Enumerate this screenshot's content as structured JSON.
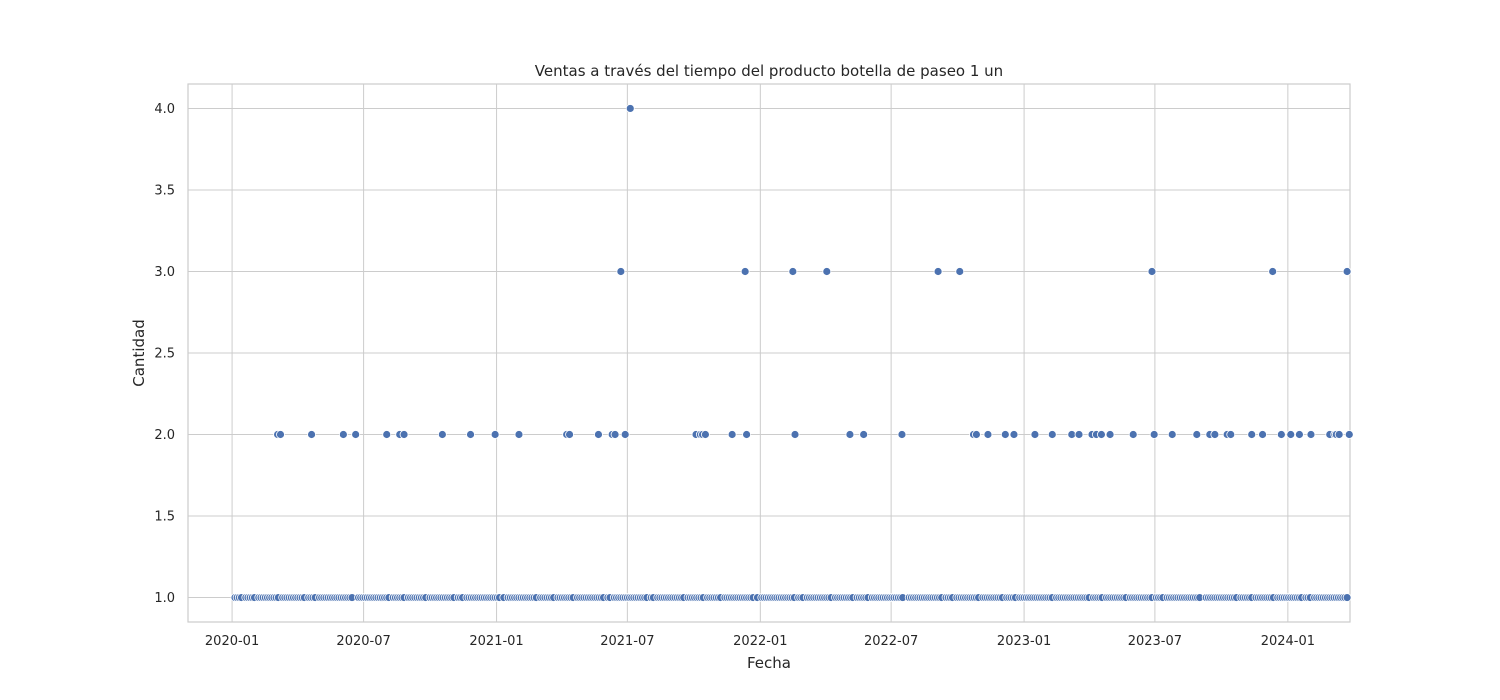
{
  "chart_data": {
    "type": "scatter",
    "title": "Ventas a través del tiempo del producto botella de paseo 1 un",
    "xlabel": "Fecha",
    "ylabel": "Cantidad",
    "x_axis_type": "date",
    "xlim": [
      "2019-11-01",
      "2024-03-27"
    ],
    "ylim": [
      0.85,
      4.15
    ],
    "x_ticks": [
      {
        "date": "2020-01-01",
        "label": "2020-01"
      },
      {
        "date": "2020-07-01",
        "label": "2020-07"
      },
      {
        "date": "2021-01-01",
        "label": "2021-01"
      },
      {
        "date": "2021-07-01",
        "label": "2021-07"
      },
      {
        "date": "2022-01-01",
        "label": "2022-01"
      },
      {
        "date": "2022-07-01",
        "label": "2022-07"
      },
      {
        "date": "2023-01-01",
        "label": "2023-01"
      },
      {
        "date": "2023-07-01",
        "label": "2023-07"
      },
      {
        "date": "2024-01-01",
        "label": "2024-01"
      }
    ],
    "y_ticks": [
      {
        "value": 1.0,
        "label": "1.0"
      },
      {
        "value": 1.5,
        "label": "1.5"
      },
      {
        "value": 2.0,
        "label": "2.0"
      },
      {
        "value": 2.5,
        "label": "2.5"
      },
      {
        "value": 3.0,
        "label": "3.0"
      },
      {
        "value": 3.5,
        "label": "3.5"
      },
      {
        "value": 4.0,
        "label": "4.0"
      }
    ],
    "grid": true,
    "marker_color": "#4c72b0",
    "series": [
      {
        "points": [
          [
            "2020-03-04",
            2
          ],
          [
            "2020-03-08",
            2
          ],
          [
            "2020-04-20",
            2
          ],
          [
            "2020-06-03",
            2
          ],
          [
            "2020-06-20",
            2
          ],
          [
            "2020-08-02",
            2
          ],
          [
            "2020-08-20",
            2
          ],
          [
            "2020-08-26",
            2
          ],
          [
            "2020-10-18",
            2
          ],
          [
            "2020-11-26",
            2
          ],
          [
            "2020-12-30",
            2
          ],
          [
            "2021-02-01",
            2
          ],
          [
            "2021-04-08",
            2
          ],
          [
            "2021-04-12",
            2
          ],
          [
            "2021-05-22",
            2
          ],
          [
            "2021-06-10",
            2
          ],
          [
            "2021-06-14",
            2
          ],
          [
            "2021-06-28",
            2
          ],
          [
            "2021-10-04",
            2
          ],
          [
            "2021-10-10",
            2
          ],
          [
            "2021-10-13",
            2
          ],
          [
            "2021-10-17",
            2
          ],
          [
            "2021-11-23",
            2
          ],
          [
            "2021-12-13",
            2
          ],
          [
            "2022-02-18",
            2
          ],
          [
            "2022-05-05",
            2
          ],
          [
            "2022-05-24",
            2
          ],
          [
            "2022-07-16",
            2
          ],
          [
            "2022-10-23",
            2
          ],
          [
            "2022-10-27",
            2
          ],
          [
            "2022-11-12",
            2
          ],
          [
            "2022-12-06",
            2
          ],
          [
            "2022-12-18",
            2
          ],
          [
            "2023-01-16",
            2
          ],
          [
            "2023-02-09",
            2
          ],
          [
            "2023-03-08",
            2
          ],
          [
            "2023-03-18",
            2
          ],
          [
            "2023-04-05",
            2
          ],
          [
            "2023-04-11",
            2
          ],
          [
            "2023-04-18",
            2
          ],
          [
            "2023-04-30",
            2
          ],
          [
            "2023-06-01",
            2
          ],
          [
            "2023-06-30",
            2
          ],
          [
            "2023-07-25",
            2
          ],
          [
            "2023-08-28",
            2
          ],
          [
            "2023-09-15",
            2
          ],
          [
            "2023-09-22",
            2
          ],
          [
            "2023-10-09",
            2
          ],
          [
            "2023-10-14",
            2
          ],
          [
            "2023-11-12",
            2
          ],
          [
            "2023-11-27",
            2
          ],
          [
            "2023-12-23",
            2
          ],
          [
            "2024-01-05",
            2
          ],
          [
            "2024-01-17",
            2
          ],
          [
            "2024-02-02",
            2
          ],
          [
            "2024-02-28",
            2
          ],
          [
            "2024-03-06",
            2
          ],
          [
            "2024-03-08",
            2
          ],
          [
            "2024-03-12",
            2
          ],
          [
            "2024-03-26",
            2
          ],
          [
            "2021-06-22",
            3
          ],
          [
            "2021-12-11",
            3
          ],
          [
            "2022-02-15",
            3
          ],
          [
            "2022-04-03",
            3
          ],
          [
            "2022-09-04",
            3
          ],
          [
            "2022-10-04",
            3
          ],
          [
            "2023-06-27",
            3
          ],
          [
            "2023-12-11",
            3
          ],
          [
            "2024-03-23",
            3
          ],
          [
            "2021-07-05",
            4
          ]
        ],
        "daily_ones": {
          "start": "2020-01-05",
          "end": "2024-03-25",
          "value": 1,
          "step_days": 3
        }
      }
    ]
  }
}
